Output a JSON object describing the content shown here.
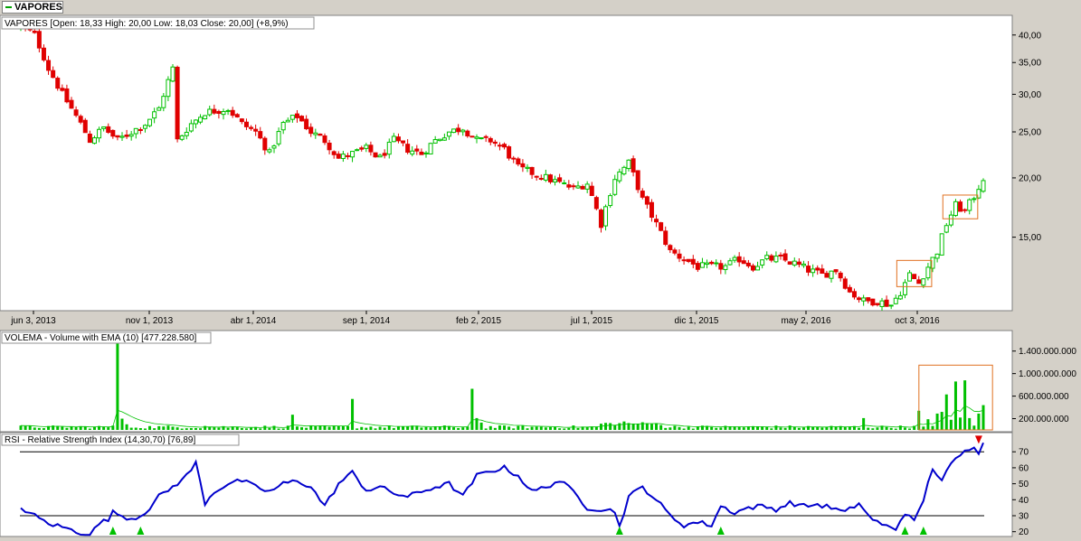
{
  "tab": {
    "label": "VAPORES"
  },
  "colors": {
    "up": "#00c000",
    "down": "#e00000",
    "rsi": "#0000cc",
    "highlight": "#e07020",
    "ema": "#00c000",
    "signal_up": "#00c000",
    "signal_down": "#e00000"
  },
  "chart_data": [
    {
      "type": "candlestick",
      "title": "VAPORES [Open: 18,33  High: 20,00  Low: 18,03  Close: 20,00] (+8,9%)",
      "x_ticks": [
        "jun 3, 2013",
        "nov 1, 2013",
        "abr 1, 2014",
        "sep 1, 2014",
        "feb 2, 2015",
        "jul 1, 2015",
        "dic 1, 2015",
        "may 2, 2016",
        "oct 3, 2016"
      ],
      "y_ticks": [
        "40,00",
        "35,00",
        "30,00",
        "25,00",
        "20,00",
        "15,00"
      ],
      "y_scale": "log",
      "ylim": [
        10.5,
        44
      ],
      "close_anchors": [
        [
          0,
          42
        ],
        [
          3,
          40
        ],
        [
          6,
          34
        ],
        [
          9,
          30
        ],
        [
          12,
          27
        ],
        [
          15,
          24
        ],
        [
          18,
          25.5
        ],
        [
          21,
          24
        ],
        [
          24,
          25
        ],
        [
          27,
          26
        ],
        [
          30,
          28
        ],
        [
          33,
          34
        ],
        [
          34,
          24
        ],
        [
          37,
          26
        ],
        [
          40,
          27.5
        ],
        [
          45,
          28
        ],
        [
          48,
          26
        ],
        [
          51,
          25
        ],
        [
          54,
          22.5
        ],
        [
          57,
          26
        ],
        [
          60,
          27
        ],
        [
          63,
          25
        ],
        [
          66,
          24
        ],
        [
          69,
          22
        ],
        [
          72,
          22.5
        ],
        [
          75,
          23
        ],
        [
          78,
          22
        ],
        [
          81,
          24
        ],
        [
          84,
          23
        ],
        [
          87,
          22.5
        ],
        [
          90,
          24
        ],
        [
          93,
          25
        ],
        [
          96,
          25.5
        ],
        [
          99,
          24
        ],
        [
          102,
          24
        ],
        [
          105,
          23
        ],
        [
          108,
          21
        ],
        [
          111,
          20.5
        ],
        [
          114,
          20
        ],
        [
          117,
          19.5
        ],
        [
          120,
          19
        ],
        [
          123,
          19.5
        ],
        [
          126,
          16
        ],
        [
          129,
          20
        ],
        [
          132,
          21.5
        ],
        [
          135,
          18
        ],
        [
          138,
          16
        ],
        [
          141,
          14
        ],
        [
          144,
          13.5
        ],
        [
          147,
          13
        ],
        [
          150,
          13
        ],
        [
          153,
          13
        ],
        [
          156,
          13.5
        ],
        [
          159,
          13
        ],
        [
          162,
          13.5
        ],
        [
          165,
          13.5
        ],
        [
          168,
          13.2
        ],
        [
          171,
          12.8
        ],
        [
          174,
          12.5
        ],
        [
          177,
          12.8
        ],
        [
          180,
          11.5
        ],
        [
          183,
          11
        ],
        [
          186,
          11
        ],
        [
          189,
          10.8
        ],
        [
          191,
          11.5
        ],
        [
          193,
          12.5
        ],
        [
          195,
          12
        ],
        [
          197,
          13
        ],
        [
          199,
          14
        ],
        [
          201,
          16
        ],
        [
          203,
          17.5
        ],
        [
          205,
          17
        ],
        [
          207,
          18.3
        ],
        [
          209,
          20
        ]
      ],
      "highlight_boxes": [
        [
          191,
          197,
          11.8,
          13.4
        ],
        [
          201,
          207,
          16.4,
          18.4
        ]
      ]
    },
    {
      "type": "bar",
      "title": "VOLEMA - Volume with EMA (10) [477.228.580]",
      "y_ticks": [
        "1.400.000.000",
        "1.000.000.000",
        "600.000.000",
        "200.000.000"
      ],
      "ylim": [
        0,
        1700000000
      ],
      "baseline": 45000000,
      "spikes": [
        [
          21,
          1650000000
        ],
        [
          22,
          200000000
        ],
        [
          23,
          100000000
        ],
        [
          40,
          70000000
        ],
        [
          59,
          270000000
        ],
        [
          72,
          550000000
        ],
        [
          98,
          730000000
        ],
        [
          99,
          210000000
        ],
        [
          100,
          130000000
        ],
        [
          131,
          150000000
        ],
        [
          183,
          210000000
        ],
        [
          195,
          340000000
        ],
        [
          197,
          190000000
        ],
        [
          199,
          290000000
        ],
        [
          200,
          320000000
        ],
        [
          201,
          630000000
        ],
        [
          202,
          180000000
        ],
        [
          203,
          860000000
        ],
        [
          204,
          220000000
        ],
        [
          205,
          880000000
        ],
        [
          206,
          210000000
        ],
        [
          208,
          290000000
        ],
        [
          209,
          440000000
        ]
      ],
      "ema_label": "EMA (10)",
      "highlight_boxes": [
        [
          196,
          211,
          0,
          1150000000
        ]
      ]
    },
    {
      "type": "line",
      "title": "RSI - Relative Strength Index (14,30,70) [76,89]",
      "y_ticks": [
        "70",
        "60",
        "50",
        "40",
        "30",
        "20"
      ],
      "ylim": [
        17,
        82
      ],
      "levels": [
        30,
        70
      ],
      "values_anchors": [
        [
          0,
          35
        ],
        [
          3,
          30
        ],
        [
          6,
          25
        ],
        [
          9,
          23
        ],
        [
          12,
          20
        ],
        [
          15,
          18
        ],
        [
          17,
          25
        ],
        [
          19,
          28
        ],
        [
          20,
          32
        ],
        [
          22,
          30
        ],
        [
          24,
          28
        ],
        [
          26,
          30
        ],
        [
          28,
          35
        ],
        [
          30,
          42
        ],
        [
          33,
          48
        ],
        [
          36,
          55
        ],
        [
          38,
          63
        ],
        [
          40,
          38
        ],
        [
          42,
          45
        ],
        [
          45,
          50
        ],
        [
          48,
          52
        ],
        [
          51,
          48
        ],
        [
          54,
          45
        ],
        [
          57,
          50
        ],
        [
          60,
          52
        ],
        [
          63,
          48
        ],
        [
          66,
          36
        ],
        [
          69,
          50
        ],
        [
          72,
          57
        ],
        [
          75,
          46
        ],
        [
          78,
          48
        ],
        [
          81,
          44
        ],
        [
          84,
          42
        ],
        [
          87,
          45
        ],
        [
          90,
          48
        ],
        [
          93,
          50
        ],
        [
          96,
          42
        ],
        [
          99,
          55
        ],
        [
          102,
          58
        ],
        [
          105,
          60
        ],
        [
          108,
          55
        ],
        [
          111,
          45
        ],
        [
          114,
          48
        ],
        [
          117,
          52
        ],
        [
          120,
          45
        ],
        [
          123,
          35
        ],
        [
          126,
          34
        ],
        [
          129,
          33
        ],
        [
          130,
          23
        ],
        [
          132,
          42
        ],
        [
          135,
          48
        ],
        [
          138,
          40
        ],
        [
          141,
          30
        ],
        [
          144,
          24
        ],
        [
          147,
          26
        ],
        [
          150,
          24
        ],
        [
          152,
          36
        ],
        [
          155,
          32
        ],
        [
          158,
          35
        ],
        [
          161,
          36
        ],
        [
          164,
          34
        ],
        [
          167,
          38
        ],
        [
          170,
          36
        ],
        [
          173,
          37
        ],
        [
          176,
          35
        ],
        [
          179,
          32
        ],
        [
          182,
          38
        ],
        [
          184,
          30
        ],
        [
          187,
          24
        ],
        [
          190,
          22
        ],
        [
          192,
          32
        ],
        [
          194,
          26
        ],
        [
          196,
          40
        ],
        [
          198,
          60
        ],
        [
          200,
          52
        ],
        [
          202,
          62
        ],
        [
          204,
          68
        ],
        [
          206,
          72
        ],
        [
          207,
          74
        ],
        [
          208,
          70
        ],
        [
          209,
          77
        ]
      ],
      "signals_up": [
        20,
        26,
        130,
        152,
        192,
        196
      ],
      "signals_down": [
        208
      ]
    }
  ]
}
